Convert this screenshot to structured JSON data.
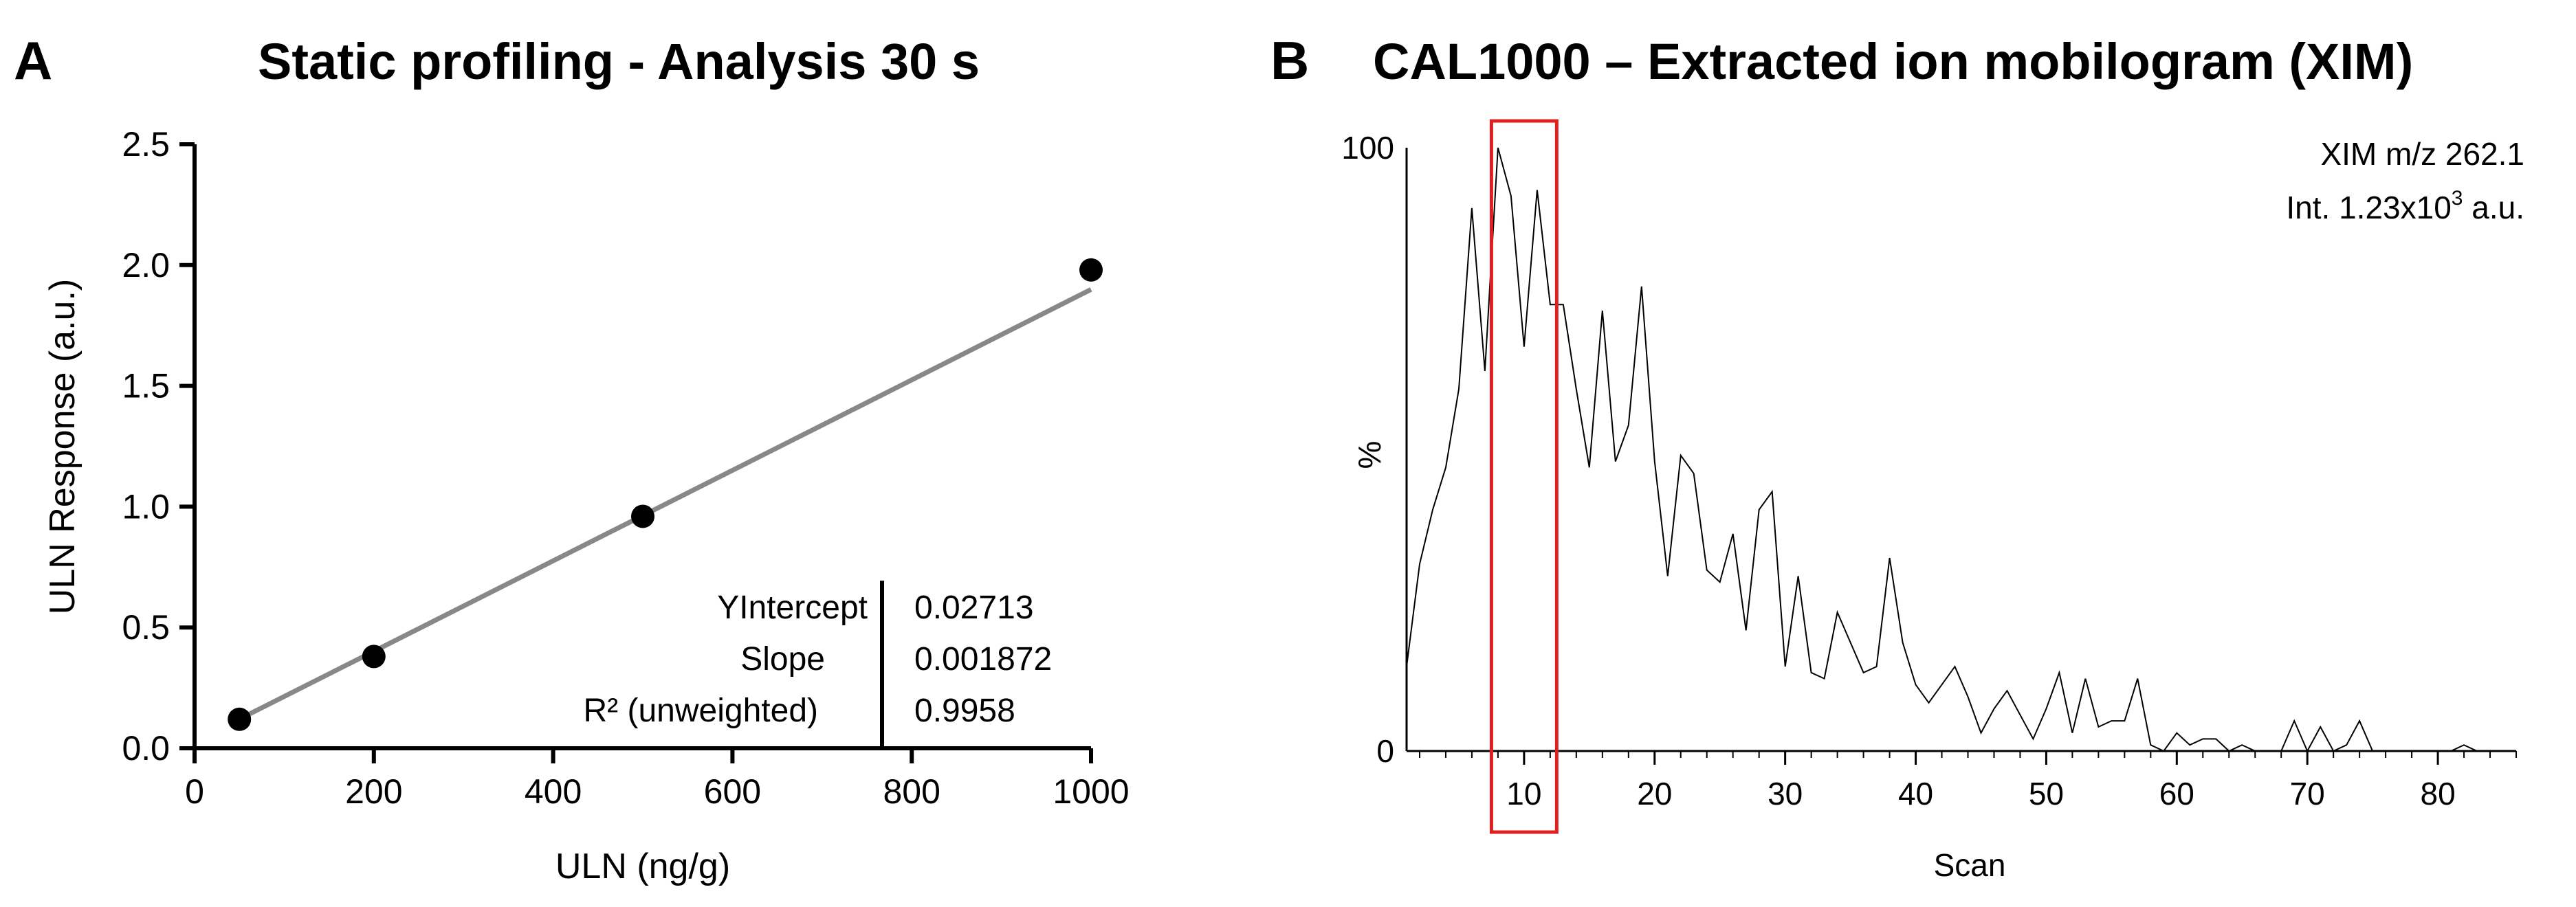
{
  "chart_data": [
    {
      "panel": "A",
      "type": "scatter",
      "title": "Static profiling - Analysis 30 s",
      "xlabel": "ULN (ng/g)",
      "ylabel": "ULN Response (a.u.)",
      "xlim": [
        0,
        1000
      ],
      "ylim": [
        0,
        2.5
      ],
      "xticks": [
        0,
        200,
        400,
        600,
        800,
        1000
      ],
      "yticks": [
        "0.0",
        "0.5",
        "1.0",
        "1.5",
        "2.0",
        "2.5"
      ],
      "x": [
        50,
        200,
        500,
        1000
      ],
      "y": [
        0.12,
        0.38,
        0.96,
        1.98
      ],
      "fit": {
        "intercept": 0.02713,
        "slope": 0.001872,
        "x_range": [
          50,
          1000
        ],
        "color": "#888888"
      },
      "stats": {
        "labels": [
          "YIntercept",
          "Slope",
          "R² (unweighted)"
        ],
        "values": [
          "0.02713",
          "0.001872",
          "0.9958"
        ]
      }
    },
    {
      "panel": "B",
      "type": "line",
      "title": "CAL1000 – Extracted ion mobilogram (XIM)",
      "xlabel": "Scan",
      "ylabel": "%",
      "xlim": [
        1,
        86
      ],
      "ylim": [
        0,
        100
      ],
      "xticks": [
        10,
        20,
        30,
        40,
        50,
        60,
        70,
        80
      ],
      "yticks": [
        "0",
        "100"
      ],
      "annotation": {
        "line1": "XIM m/z 262.1",
        "line2_prefix": "Int. 1.23x10",
        "line2_sup": "3",
        "line2_suffix": " a.u."
      },
      "highlight": {
        "x_range": [
          7.5,
          12.5
        ],
        "color": "#e02020"
      },
      "x": [
        1,
        2,
        3,
        4,
        5,
        6,
        7,
        8,
        9,
        10,
        11,
        12,
        13,
        14,
        15,
        16,
        17,
        18,
        19,
        20,
        21,
        22,
        23,
        24,
        25,
        26,
        27,
        28,
        29,
        30,
        31,
        32,
        33,
        34,
        35,
        36,
        37,
        38,
        39,
        40,
        41,
        42,
        43,
        44,
        45,
        46,
        47,
        48,
        49,
        50,
        51,
        52,
        53,
        54,
        55,
        56,
        57,
        58,
        59,
        60,
        61,
        62,
        63,
        64,
        65,
        66,
        67,
        68,
        69,
        70,
        71,
        72,
        73,
        74,
        75,
        76,
        77,
        78,
        79,
        80,
        81,
        82,
        83,
        84,
        85,
        86
      ],
      "y": [
        14,
        31,
        40,
        47,
        60,
        90,
        63,
        100,
        92,
        67,
        93,
        74,
        74,
        60,
        47,
        73,
        48,
        54,
        77,
        48,
        29,
        49,
        46,
        30,
        28,
        36,
        20,
        40,
        43,
        14,
        29,
        13,
        12,
        23,
        18,
        13,
        14,
        32,
        18,
        11,
        8,
        11,
        14,
        9,
        3,
        7,
        10,
        6,
        2,
        7,
        13,
        3,
        12,
        4,
        5,
        5,
        12,
        1,
        0,
        3,
        1,
        2,
        2,
        0,
        1,
        0,
        0,
        0,
        5,
        0,
        4,
        0,
        1,
        5,
        0,
        0,
        0,
        0,
        0,
        0,
        0,
        1,
        0,
        0,
        0,
        0
      ]
    }
  ]
}
